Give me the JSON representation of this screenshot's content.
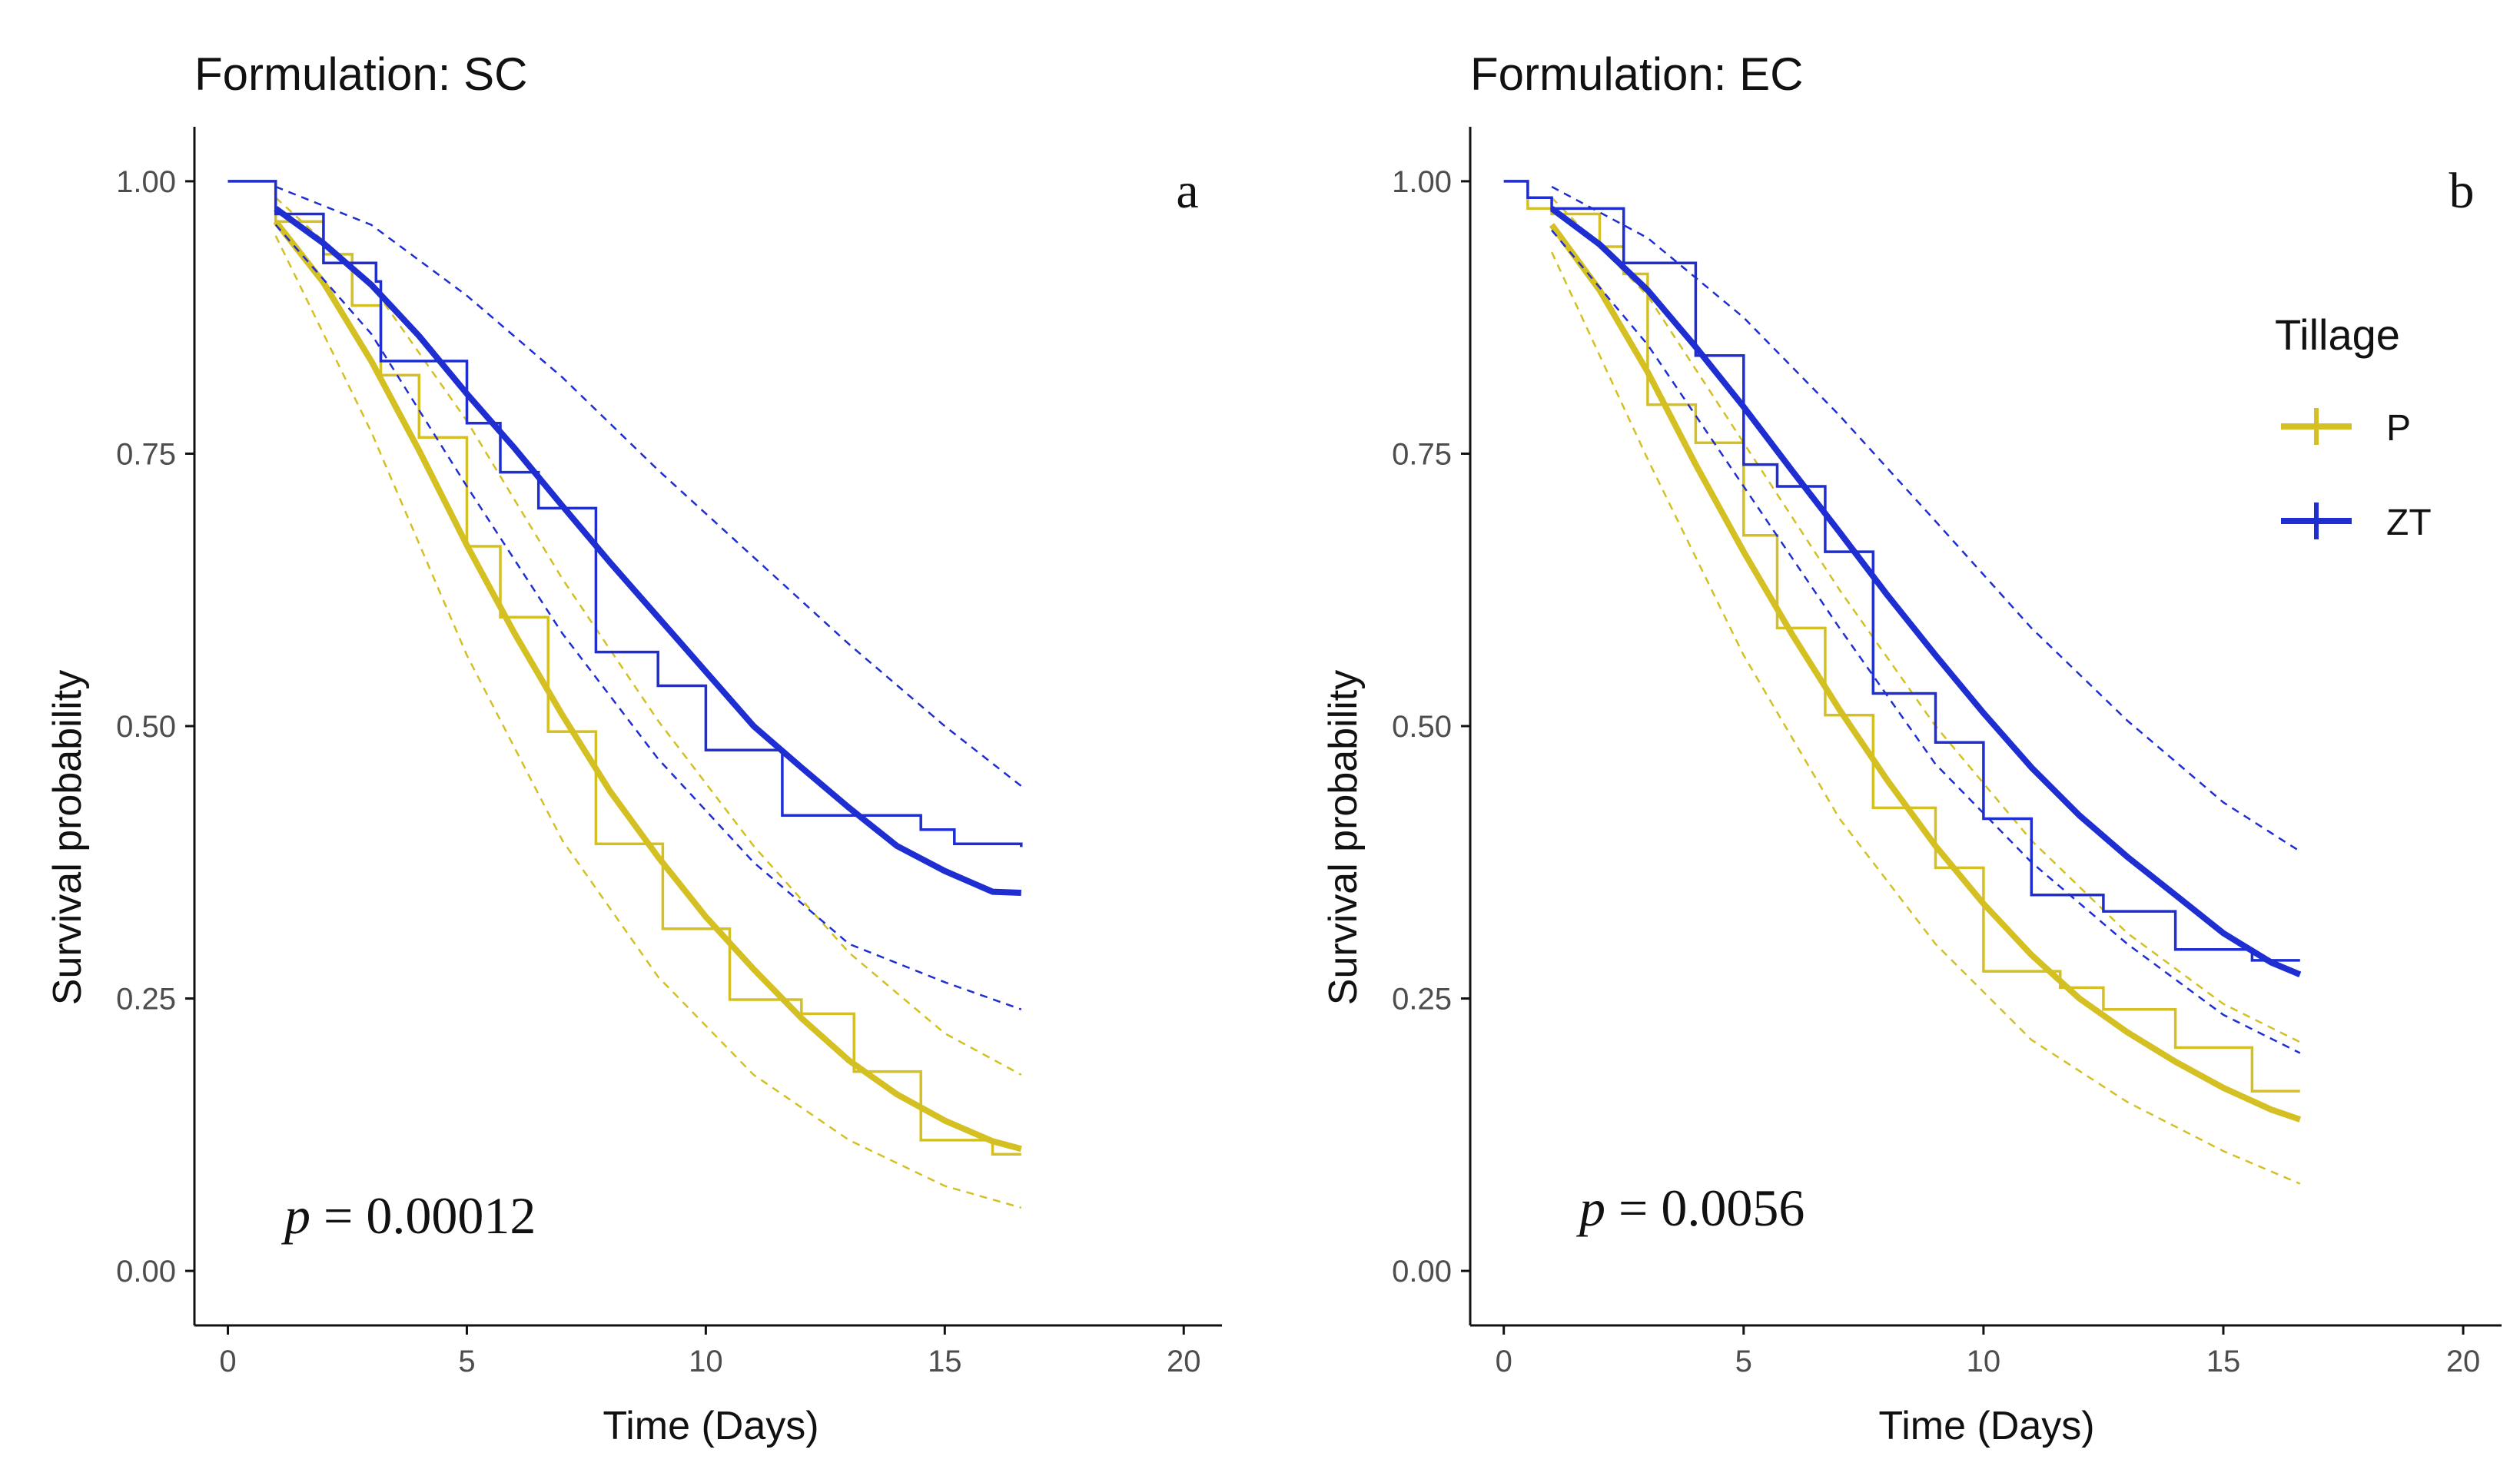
{
  "colors": {
    "P": "#d4c022",
    "ZT": "#1f2ed1",
    "axis": "#111111",
    "tick_text": "#4d4d4d",
    "background": "#ffffff"
  },
  "legend": {
    "title": "Tillage",
    "items": [
      {
        "key": "P",
        "label": "P"
      },
      {
        "key": "ZT",
        "label": "ZT"
      }
    ]
  },
  "chart_data": [
    {
      "type": "line",
      "title": "Formulation: SC",
      "panel_label": "a",
      "xlabel": "Time (Days)",
      "ylabel": "Survival probability",
      "xlim": [
        -0.7,
        20.8
      ],
      "ylim": [
        -0.05,
        1.05
      ],
      "xticks": [
        0,
        5,
        10,
        15,
        20
      ],
      "xtick_labels": [
        "0",
        "5",
        "10",
        "15",
        "20"
      ],
      "yticks": [
        0,
        0.25,
        0.5,
        0.75,
        1.0
      ],
      "ytick_labels": [
        "0.00",
        "0.25",
        "0.50",
        "0.75",
        "1.00"
      ],
      "annotation": {
        "p_label": "p",
        "p_rest": " = 0.00012"
      },
      "series": [
        {
          "name": "P",
          "key": "P",
          "km_steps": [
            [
              0,
              1.0
            ],
            [
              1.0,
              0.963
            ],
            [
              2.0,
              0.933
            ],
            [
              2.6,
              0.886
            ],
            [
              3.2,
              0.822
            ],
            [
              4.0,
              0.765
            ],
            [
              5.0,
              0.665
            ],
            [
              5.7,
              0.6
            ],
            [
              6.7,
              0.495
            ],
            [
              7.7,
              0.392
            ],
            [
              9.1,
              0.314
            ],
            [
              10.5,
              0.249
            ],
            [
              12.0,
              0.236
            ],
            [
              13.1,
              0.183
            ],
            [
              14.5,
              0.12
            ],
            [
              16.0,
              0.107
            ],
            [
              16.6,
              0.107
            ]
          ],
          "fit": {
            "x": [
              1.0,
              2.0,
              3.0,
              4.0,
              5.0,
              6.0,
              7.0,
              8.0,
              9.0,
              10.0,
              11.0,
              12.0,
              13.0,
              14.0,
              15.0,
              16.0,
              16.6
            ],
            "y": [
              0.963,
              0.907,
              0.835,
              0.753,
              0.666,
              0.585,
              0.51,
              0.44,
              0.38,
              0.325,
              0.277,
              0.232,
              0.193,
              0.162,
              0.138,
              0.119,
              0.112
            ]
          },
          "ci_upper": {
            "x": [
              1.0,
              3.0,
              5.0,
              7.0,
              9.0,
              11.0,
              13.0,
              15.0,
              16.6
            ],
            "y": [
              0.985,
              0.905,
              0.78,
              0.635,
              0.505,
              0.39,
              0.292,
              0.218,
              0.18
            ]
          },
          "ci_lower": {
            "x": [
              1.0,
              3.0,
              5.0,
              7.0,
              9.0,
              11.0,
              13.0,
              15.0,
              16.6
            ],
            "y": [
              0.95,
              0.77,
              0.565,
              0.395,
              0.27,
              0.18,
              0.12,
              0.078,
              0.058
            ]
          }
        },
        {
          "name": "ZT",
          "key": "ZT",
          "km_steps": [
            [
              0,
              1.0
            ],
            [
              1.0,
              0.97
            ],
            [
              2.0,
              0.925
            ],
            [
              3.1,
              0.908
            ],
            [
              3.2,
              0.835
            ],
            [
              5.0,
              0.778
            ],
            [
              5.7,
              0.733
            ],
            [
              6.5,
              0.7
            ],
            [
              7.7,
              0.568
            ],
            [
              9.0,
              0.537
            ],
            [
              10.0,
              0.478
            ],
            [
              11.6,
              0.418
            ],
            [
              14.5,
              0.405
            ],
            [
              15.2,
              0.392
            ],
            [
              16.6,
              0.389
            ]
          ],
          "fit": {
            "x": [
              1.0,
              2.0,
              3.0,
              4.0,
              5.0,
              6.0,
              7.0,
              8.0,
              9.0,
              10.0,
              11.0,
              12.0,
              13.0,
              14.0,
              15.0,
              16.0,
              16.6
            ],
            "y": [
              0.975,
              0.943,
              0.905,
              0.858,
              0.805,
              0.755,
              0.702,
              0.65,
              0.6,
              0.55,
              0.5,
              0.462,
              0.425,
              0.39,
              0.367,
              0.348,
              0.347
            ]
          },
          "ci_upper": {
            "x": [
              1.0,
              3.0,
              5.0,
              7.0,
              9.0,
              11.0,
              13.0,
              15.0,
              16.6
            ],
            "y": [
              0.995,
              0.96,
              0.895,
              0.82,
              0.735,
              0.655,
              0.575,
              0.5,
              0.445
            ]
          },
          "ci_lower": {
            "x": [
              1.0,
              3.0,
              5.0,
              7.0,
              9.0,
              11.0,
              13.0,
              15.0,
              16.6
            ],
            "y": [
              0.96,
              0.86,
              0.72,
              0.585,
              0.47,
              0.375,
              0.3,
              0.265,
              0.24
            ]
          }
        }
      ]
    },
    {
      "type": "line",
      "title": "Formulation: EC",
      "panel_label": "b",
      "xlabel": "Time (Days)",
      "ylabel": "Survival probability",
      "xlim": [
        -0.7,
        20.8
      ],
      "ylim": [
        -0.05,
        1.05
      ],
      "xticks": [
        0,
        5,
        10,
        15,
        20
      ],
      "xtick_labels": [
        "0",
        "5",
        "10",
        "15",
        "20"
      ],
      "yticks": [
        0,
        0.25,
        0.5,
        0.75,
        1.0
      ],
      "ytick_labels": [
        "0.00",
        "0.25",
        "0.50",
        "0.75",
        "1.00"
      ],
      "annotation": {
        "p_label": "p",
        "p_rest": " = 0.0056"
      },
      "series": [
        {
          "name": "P",
          "key": "P",
          "km_steps": [
            [
              0,
              1.0
            ],
            [
              0.5,
              0.975
            ],
            [
              1.0,
              0.97
            ],
            [
              2.0,
              0.94
            ],
            [
              2.5,
              0.915
            ],
            [
              3.0,
              0.795
            ],
            [
              4.0,
              0.76
            ],
            [
              5.0,
              0.675
            ],
            [
              5.7,
              0.59
            ],
            [
              6.7,
              0.51
            ],
            [
              7.7,
              0.425
            ],
            [
              9.0,
              0.37
            ],
            [
              10.0,
              0.275
            ],
            [
              11.6,
              0.26
            ],
            [
              12.5,
              0.24
            ],
            [
              14.0,
              0.205
            ],
            [
              15.6,
              0.165
            ],
            [
              16.6,
              0.165
            ]
          ],
          "fit": {
            "x": [
              1.0,
              2.0,
              3.0,
              4.0,
              5.0,
              6.0,
              7.0,
              8.0,
              9.0,
              10.0,
              11.0,
              12.0,
              13.0,
              14.0,
              15.0,
              16.0,
              16.6
            ],
            "y": [
              0.96,
              0.9,
              0.825,
              0.74,
              0.66,
              0.585,
              0.515,
              0.45,
              0.39,
              0.337,
              0.29,
              0.25,
              0.219,
              0.192,
              0.168,
              0.148,
              0.139
            ]
          },
          "ci_upper": {
            "x": [
              1.0,
              3.0,
              5.0,
              7.0,
              9.0,
              11.0,
              13.0,
              15.0,
              16.6
            ],
            "y": [
              0.985,
              0.895,
              0.76,
              0.625,
              0.5,
              0.395,
              0.31,
              0.245,
              0.21
            ]
          },
          "ci_lower": {
            "x": [
              1.0,
              3.0,
              5.0,
              7.0,
              9.0,
              11.0,
              13.0,
              15.0,
              16.6
            ],
            "y": [
              0.935,
              0.745,
              0.565,
              0.415,
              0.3,
              0.212,
              0.155,
              0.11,
              0.08
            ]
          }
        },
        {
          "name": "ZT",
          "key": "ZT",
          "km_steps": [
            [
              0,
              1.0
            ],
            [
              0.5,
              0.985
            ],
            [
              1.0,
              0.975
            ],
            [
              2.5,
              0.925
            ],
            [
              4.0,
              0.84
            ],
            [
              5.0,
              0.74
            ],
            [
              5.7,
              0.72
            ],
            [
              6.7,
              0.66
            ],
            [
              7.7,
              0.53
            ],
            [
              9.0,
              0.485
            ],
            [
              10.0,
              0.415
            ],
            [
              11.0,
              0.345
            ],
            [
              12.5,
              0.33
            ],
            [
              14.0,
              0.295
            ],
            [
              15.6,
              0.285
            ],
            [
              16.6,
              0.285
            ]
          ],
          "fit": {
            "x": [
              1.0,
              2.0,
              3.0,
              4.0,
              5.0,
              6.0,
              7.0,
              8.0,
              9.0,
              10.0,
              11.0,
              12.0,
              13.0,
              14.0,
              15.0,
              16.0,
              16.6
            ],
            "y": [
              0.975,
              0.942,
              0.9,
              0.848,
              0.793,
              0.735,
              0.678,
              0.62,
              0.565,
              0.512,
              0.462,
              0.418,
              0.38,
              0.345,
              0.31,
              0.283,
              0.272
            ]
          },
          "ci_upper": {
            "x": [
              1.0,
              3.0,
              5.0,
              7.0,
              9.0,
              11.0,
              13.0,
              15.0,
              16.6
            ],
            "y": [
              0.995,
              0.948,
              0.875,
              0.785,
              0.688,
              0.59,
              0.505,
              0.43,
              0.385
            ]
          },
          "ci_lower": {
            "x": [
              1.0,
              3.0,
              5.0,
              7.0,
              9.0,
              11.0,
              13.0,
              15.0,
              16.6
            ],
            "y": [
              0.955,
              0.85,
              0.72,
              0.59,
              0.465,
              0.375,
              0.3,
              0.235,
              0.2
            ]
          }
        }
      ]
    }
  ]
}
